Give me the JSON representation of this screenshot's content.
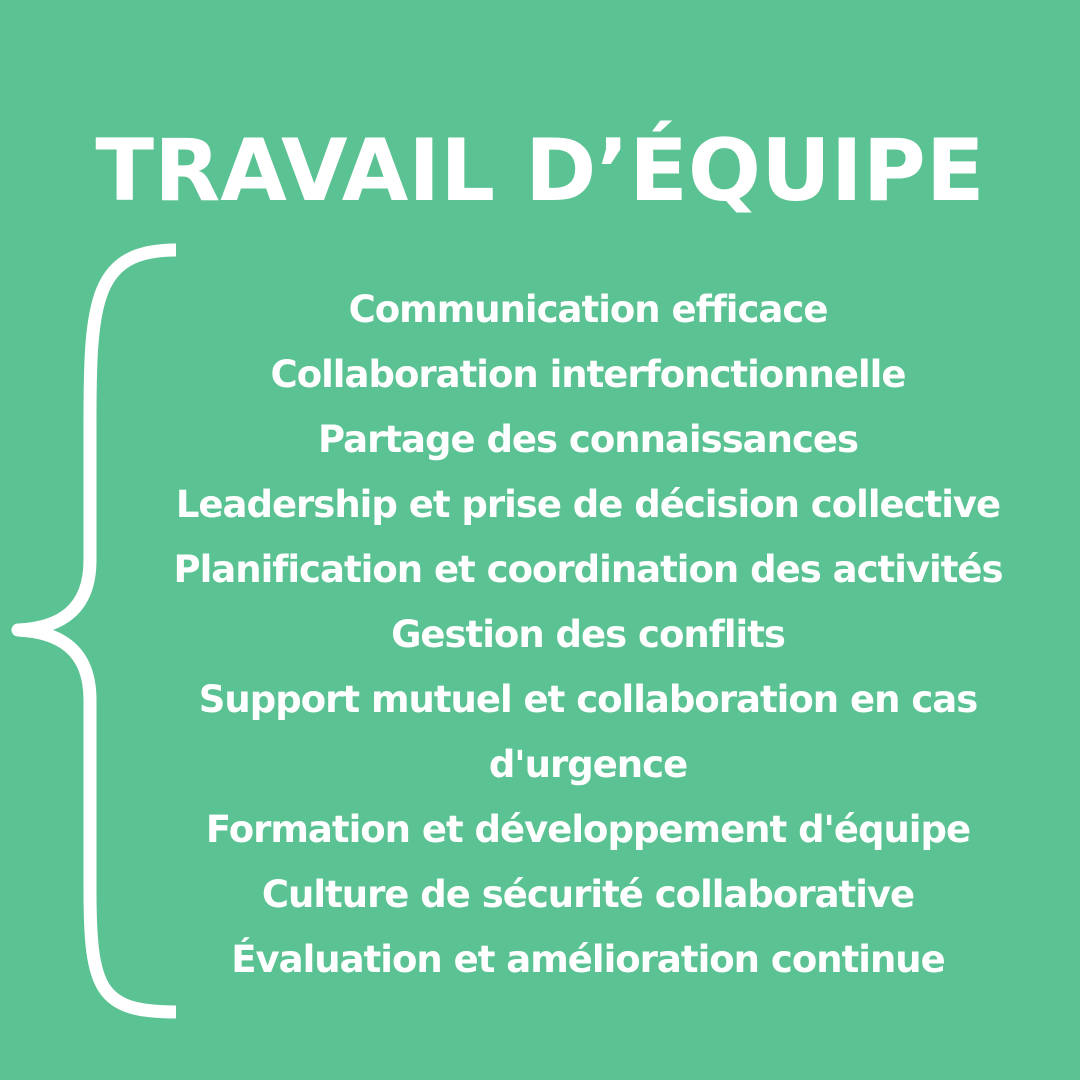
{
  "colors": {
    "background": "#5BC393",
    "foreground": "#FFFFFF"
  },
  "title": "TRAVAIL D’ÉQUIPE",
  "items": [
    "Communication efficace",
    "Collaboration interfonctionnelle",
    "Partage des connaissances",
    "Leadership et prise de décision collective",
    "Planification et coordination des activités",
    "Gestion des conflits",
    "Support mutuel et collaboration en cas",
    "d'urgence",
    "Formation et développement d'équipe",
    "Culture de sécurité collaborative",
    "Évaluation et amélioration continue"
  ],
  "decoration": "curly-brace"
}
